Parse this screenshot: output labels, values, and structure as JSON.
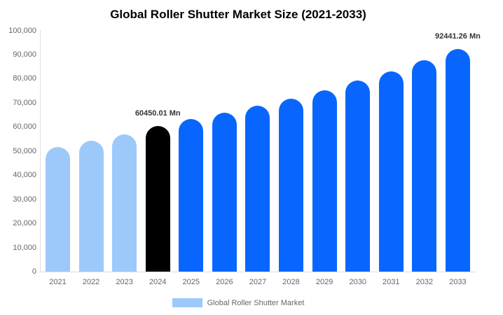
{
  "title": "Global Roller Shutter Market Size (2021-2033)",
  "legend": {
    "label": "Global Roller Shutter Market",
    "swatch_color": "#9DC9FA"
  },
  "colors": {
    "light_blue": "#9DC9FA",
    "highlight_black": "#000000",
    "blue": "#0866FF",
    "axis_line": "#DDDDDD",
    "tick_text": "#666666",
    "annotation_text": "#333333",
    "title_text": "#000000"
  },
  "chart_data": {
    "type": "bar",
    "title": "Global Roller Shutter Market Size (2021-2033)",
    "series_name": "Global Roller Shutter Market",
    "categories": [
      "2021",
      "2022",
      "2023",
      "2024",
      "2025",
      "2026",
      "2027",
      "2028",
      "2029",
      "2030",
      "2031",
      "2032",
      "2033"
    ],
    "values": [
      51800,
      54300,
      57000,
      60450.01,
      63200,
      65800,
      68900,
      71800,
      75300,
      79300,
      83100,
      87700,
      92441.26
    ],
    "bar_colors": [
      "#9DC9FA",
      "#9DC9FA",
      "#9DC9FA",
      "#000000",
      "#0866FF",
      "#0866FF",
      "#0866FF",
      "#0866FF",
      "#0866FF",
      "#0866FF",
      "#0866FF",
      "#0866FF",
      "#0866FF"
    ],
    "annotations": [
      {
        "category": "2024",
        "text": "60450.01 Mn"
      },
      {
        "category": "2033",
        "text": "92441.26 Mn"
      }
    ],
    "xlabel": "",
    "ylabel": "",
    "ylim": [
      0,
      100000
    ],
    "yticks": [
      {
        "value": 0,
        "label": "0"
      },
      {
        "value": 10000,
        "label": "10,000"
      },
      {
        "value": 20000,
        "label": "20,000"
      },
      {
        "value": 30000,
        "label": "30,000"
      },
      {
        "value": 40000,
        "label": "40,000"
      },
      {
        "value": 50000,
        "label": "50,000"
      },
      {
        "value": 60000,
        "label": "60,000"
      },
      {
        "value": 70000,
        "label": "70,000"
      },
      {
        "value": 80000,
        "label": "80,000"
      },
      {
        "value": 90000,
        "label": "90,000"
      },
      {
        "value": 100000,
        "label": "100,000"
      }
    ],
    "grid": false,
    "legend_position": "bottom"
  }
}
